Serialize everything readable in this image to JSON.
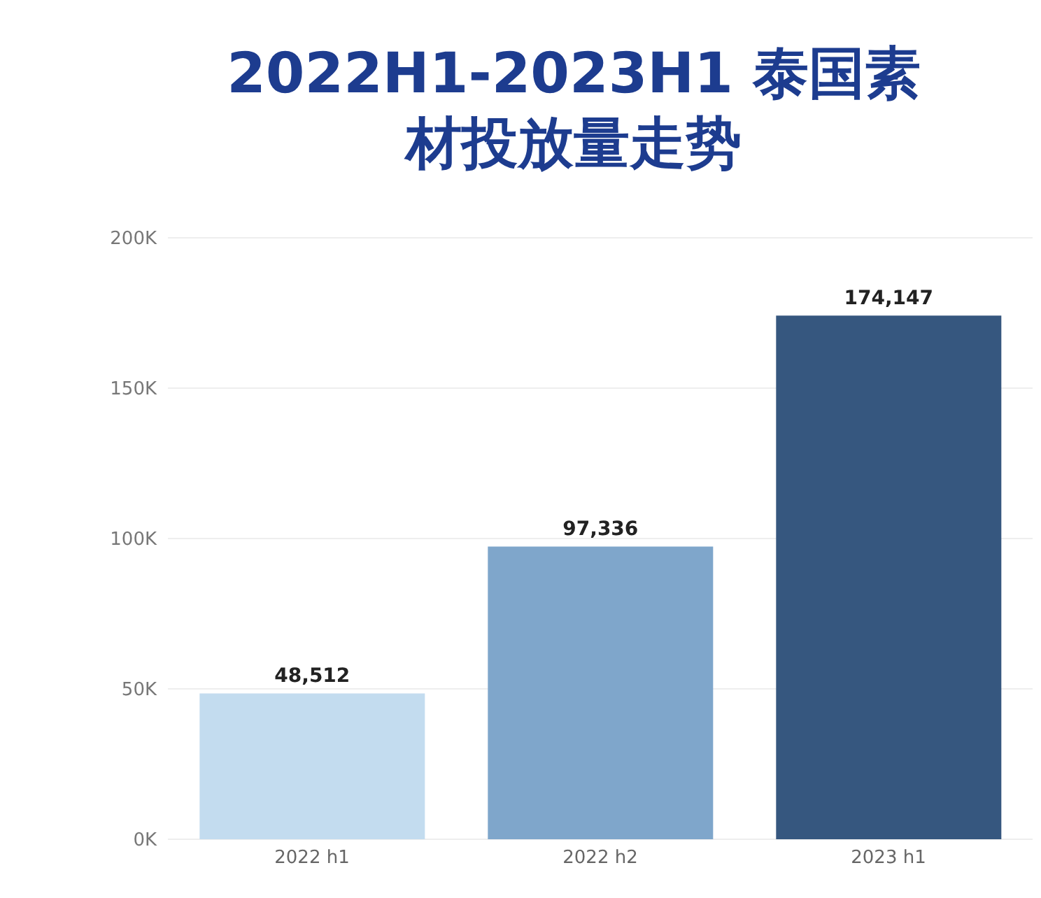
{
  "chart_data": {
    "type": "bar",
    "title": "2022H1-2023H1 泰国素材投放量走势",
    "categories": [
      "2022 h1",
      "2022 h2",
      "2023 h1"
    ],
    "values": [
      48512,
      97336,
      174147
    ],
    "colors": [
      "#c3dcef",
      "#7fa6cb",
      "#36577f"
    ],
    "value_labels": [
      "48,512",
      "97,336",
      "174,147"
    ],
    "ylim": [
      0,
      200000
    ],
    "yticks": [
      {
        "value": 0,
        "label": "0K"
      },
      {
        "value": 50000,
        "label": "50K"
      },
      {
        "value": 100000,
        "label": "100K"
      },
      {
        "value": 150000,
        "label": "150K"
      },
      {
        "value": 200000,
        "label": "200K"
      }
    ],
    "grid": "y"
  }
}
